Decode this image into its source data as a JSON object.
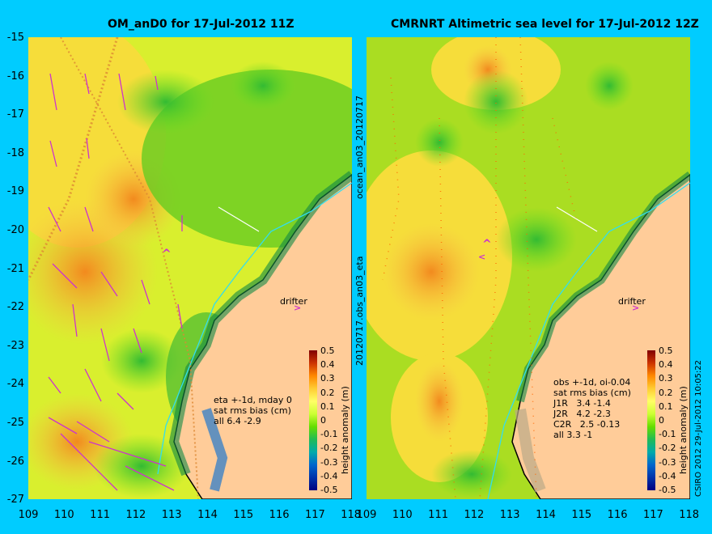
{
  "left": {
    "title": "OM_anD0 for 17-Jul-2012 11Z",
    "notes": "eta +-1d, mday 0\nsat rms bias (cm)\nall 6.4 -2.9",
    "drifter": "drifter",
    "side_label": "ocean_an03_20120717"
  },
  "right": {
    "title": "CMRNRT Altimetric sea level  for 17-Jul-2012 12Z",
    "notes": "obs +-1d, oi-0.04\nsat rms bias (cm)\nJ1R   3.4 -1.4\nJ2R   4.2 -2.3\nC2R   2.5 -0.13\nall 3.3 -1",
    "drifter": "drifter",
    "side_label": "20120717.obs_an03_eta"
  },
  "y_ticks": [
    "-15",
    "-16",
    "-17",
    "-18",
    "-19",
    "-20",
    "-21",
    "-22",
    "-23",
    "-24",
    "-25",
    "-26",
    "-27"
  ],
  "x_ticks": [
    "109",
    "110",
    "111",
    "112",
    "113",
    "114",
    "115",
    "116",
    "117",
    "118"
  ],
  "colorbar": {
    "ticks": [
      "0.5",
      "0.4",
      "0.3",
      "0.2",
      "0.1",
      "0",
      "-0.1",
      "-0.2",
      "-0.3",
      "-0.4",
      "-0.5"
    ],
    "label": "height anomaly (m)"
  },
  "credit": "CSIRO 2012   29-Jul-2012 10:05:22",
  "colors": {
    "background": "#00ccff",
    "land": "#ffcc99",
    "arrows": "#cc33cc"
  }
}
